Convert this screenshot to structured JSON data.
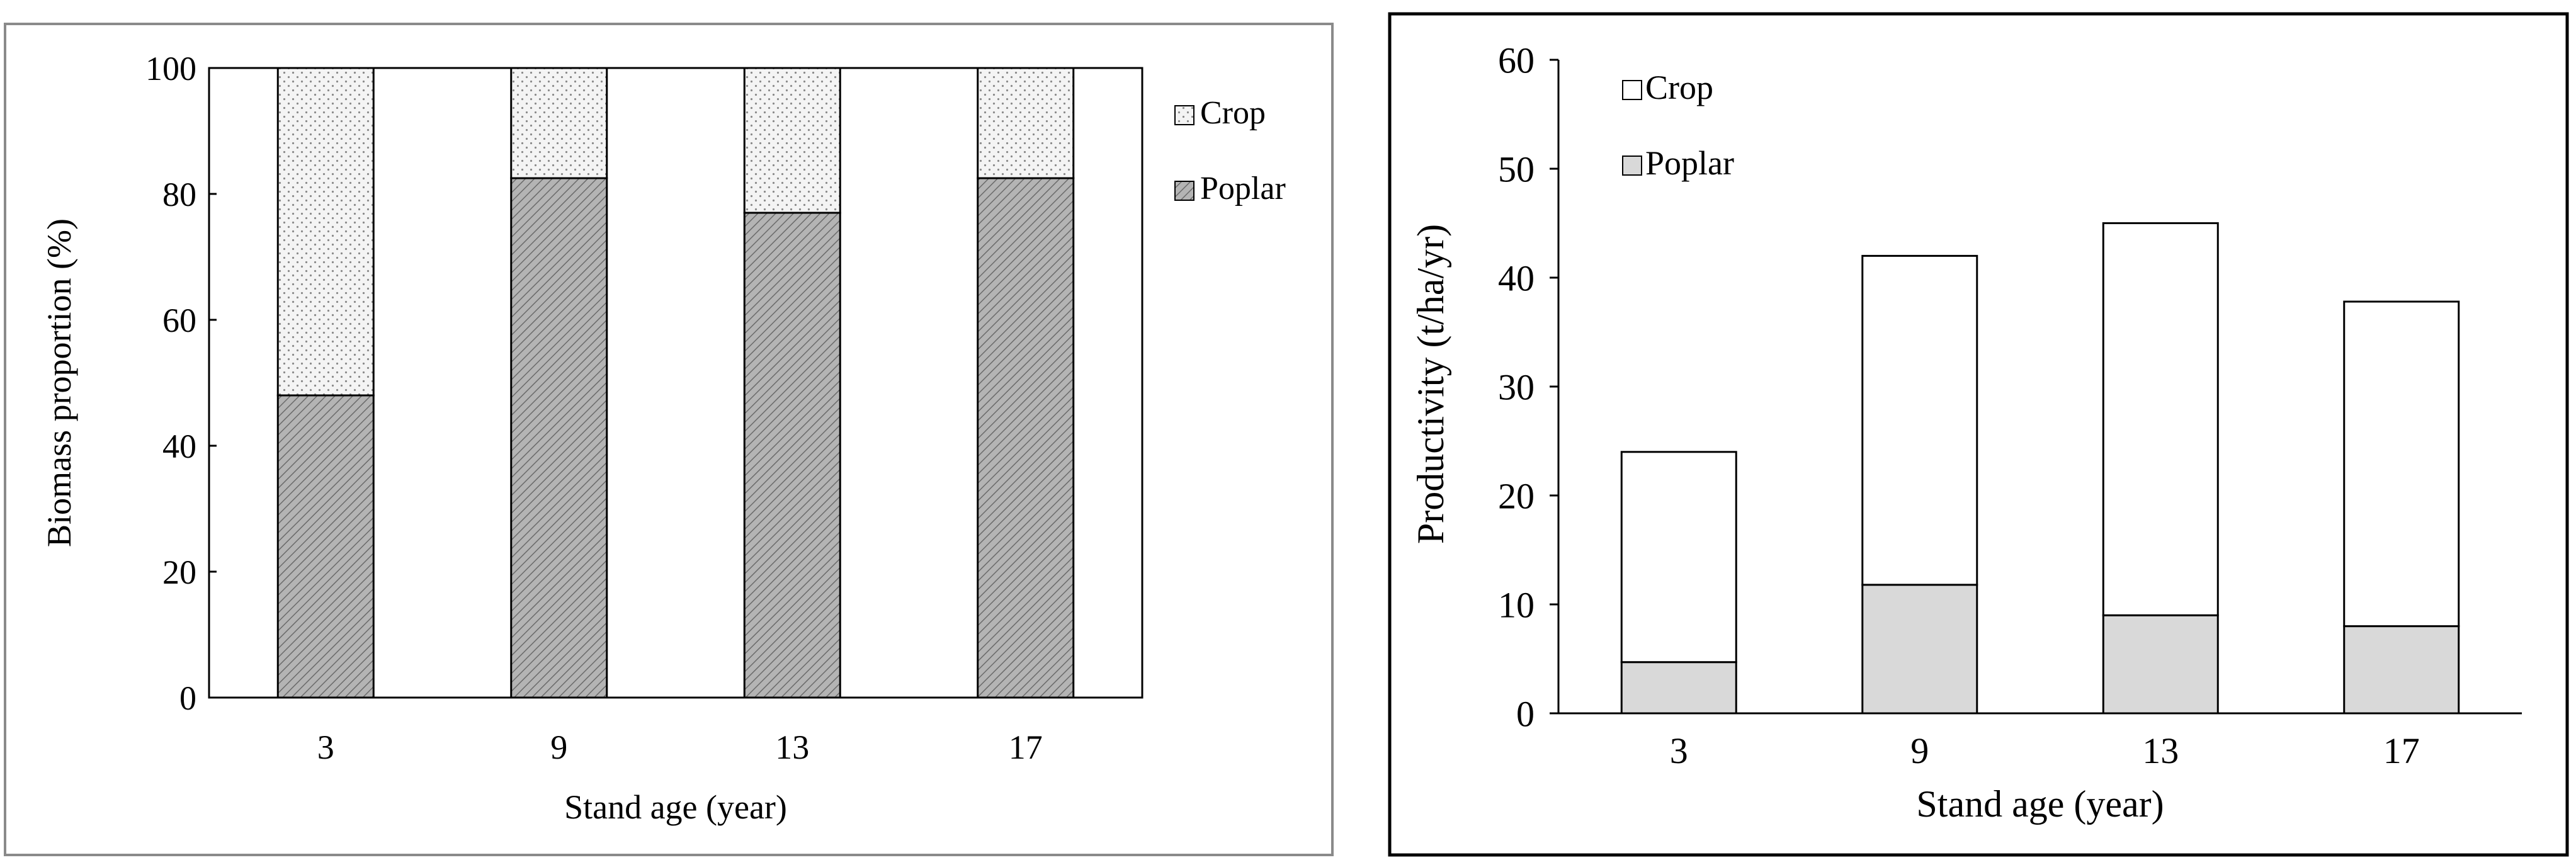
{
  "colors": {
    "crop_fill_left": "#f4f4f4",
    "poplar_fill_left": "#a8a8a8",
    "crop_fill_right": "#ffffff",
    "poplar_fill_right": "#d9d9d9",
    "stroke": "#000000"
  },
  "chart_data": [
    {
      "type": "bar",
      "stacked": true,
      "title": "",
      "xlabel": "Stand age (year)",
      "ylabel": "Biomass proportion (%)",
      "categories": [
        "3",
        "9",
        "13",
        "17"
      ],
      "ylim": [
        0,
        100
      ],
      "yticks": [
        "0",
        "20",
        "40",
        "60",
        "80",
        "100"
      ],
      "legend_position": "right",
      "legend": [
        "Crop",
        "Poplar"
      ],
      "series": [
        {
          "name": "Poplar",
          "values": [
            48,
            82.5,
            77,
            82.5
          ]
        },
        {
          "name": "Crop",
          "values": [
            52,
            17.5,
            23,
            17.5
          ]
        }
      ]
    },
    {
      "type": "bar",
      "stacked": true,
      "title": "",
      "xlabel": "Stand age (year)",
      "ylabel": "Productivity (t/ha/yr)",
      "categories": [
        "3",
        "9",
        "13",
        "17"
      ],
      "ylim": [
        0,
        60
      ],
      "yticks": [
        "0",
        "10",
        "20",
        "30",
        "40",
        "50",
        "60"
      ],
      "legend_position": "top-left",
      "legend": [
        "Crop",
        "Poplar"
      ],
      "series": [
        {
          "name": "Poplar",
          "values": [
            4.7,
            11.8,
            9.0,
            8.0
          ]
        },
        {
          "name": "Crop",
          "values": [
            19.3,
            30.2,
            36.0,
            29.8
          ]
        }
      ]
    }
  ]
}
